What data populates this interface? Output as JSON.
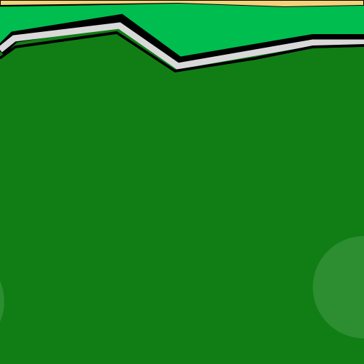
{
  "scene": {
    "colors": {
      "sand": "#f3d27a",
      "outline": "#000000",
      "lawn_light": "#00bd4f",
      "border_strip": "#d9d9d9",
      "lawn_dark": "#107e15",
      "touch_button": "#ffffff"
    },
    "elements": [
      "sand-strip",
      "light-green-lawn",
      "stone-border",
      "dark-green-field",
      "left-touch-button",
      "right-touch-button"
    ]
  }
}
